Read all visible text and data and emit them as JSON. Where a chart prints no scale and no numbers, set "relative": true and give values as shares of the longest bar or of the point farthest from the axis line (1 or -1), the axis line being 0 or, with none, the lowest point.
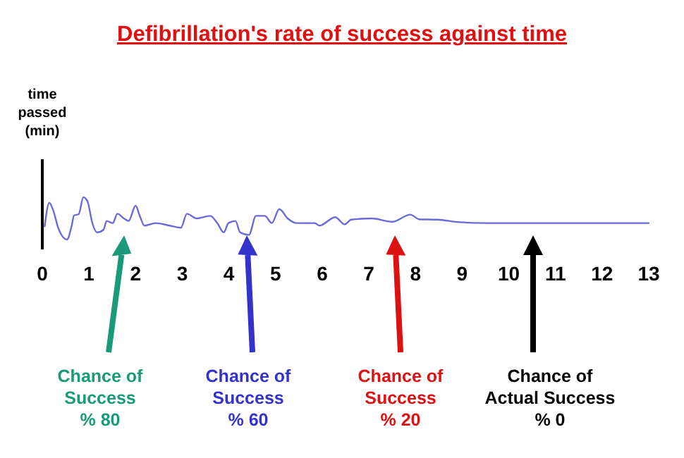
{
  "chart_data": {
    "type": "line",
    "title": "Defibrillation's rate of success against time",
    "relative": true,
    "x": [
      0.05,
      0.15,
      0.24,
      0.34,
      0.53,
      0.63,
      0.68,
      0.78,
      0.88,
      0.97,
      1.07,
      1.17,
      1.31,
      1.38,
      1.51,
      1.61,
      1.75,
      1.85,
      2.0,
      2.09,
      2.19,
      2.43,
      2.73,
      2.97,
      3.1,
      3.31,
      3.6,
      3.75,
      3.89,
      3.99,
      4.14,
      4.24,
      4.43,
      4.58,
      4.77,
      4.92,
      5.08,
      5.26,
      5.45,
      5.84,
      5.94,
      6.28,
      6.48,
      6.62,
      7.06,
      7.5,
      7.89,
      8.08,
      8.47,
      8.96,
      9.54,
      13
    ],
    "series": [
      {
        "color": "#6a6ad8",
        "values": [
          0.31,
          0.87,
          0.67,
          0.28,
          0,
          0.33,
          0.57,
          0.6,
          1,
          0.9,
          0.4,
          0.17,
          0.23,
          0.44,
          0.39,
          0.61,
          0.5,
          0.44,
          0.8,
          0.56,
          0.33,
          0.39,
          0.33,
          0.28,
          0.61,
          0.5,
          0.56,
          0.39,
          0.17,
          0.39,
          0.44,
          0.17,
          0.11,
          0.56,
          0.56,
          0.39,
          0.72,
          0.5,
          0.39,
          0.39,
          0.33,
          0.53,
          0.36,
          0.47,
          0.5,
          0.42,
          0.59,
          0.48,
          0.47,
          0.41,
          0.39,
          0.39
        ]
      }
    ],
    "xlim": [
      0,
      13
    ],
    "xticks": [
      0,
      1,
      2,
      3,
      4,
      5,
      6,
      7,
      8,
      9,
      10,
      11,
      12,
      13
    ],
    "tick_labels": "x",
    "marker": "none",
    "line_style": "solid",
    "ref_lines": [
      {
        "axis": "x",
        "value": 0,
        "label": "time passed (min)",
        "color": "#000000"
      }
    ],
    "annotations": [
      "Chance of\nSuccess\n% 80",
      "Chance of\nSuccess\n% 60",
      "Chance of\nSuccess\n% 20",
      "Chance of\nActual Success\n% 0"
    ]
  }
}
